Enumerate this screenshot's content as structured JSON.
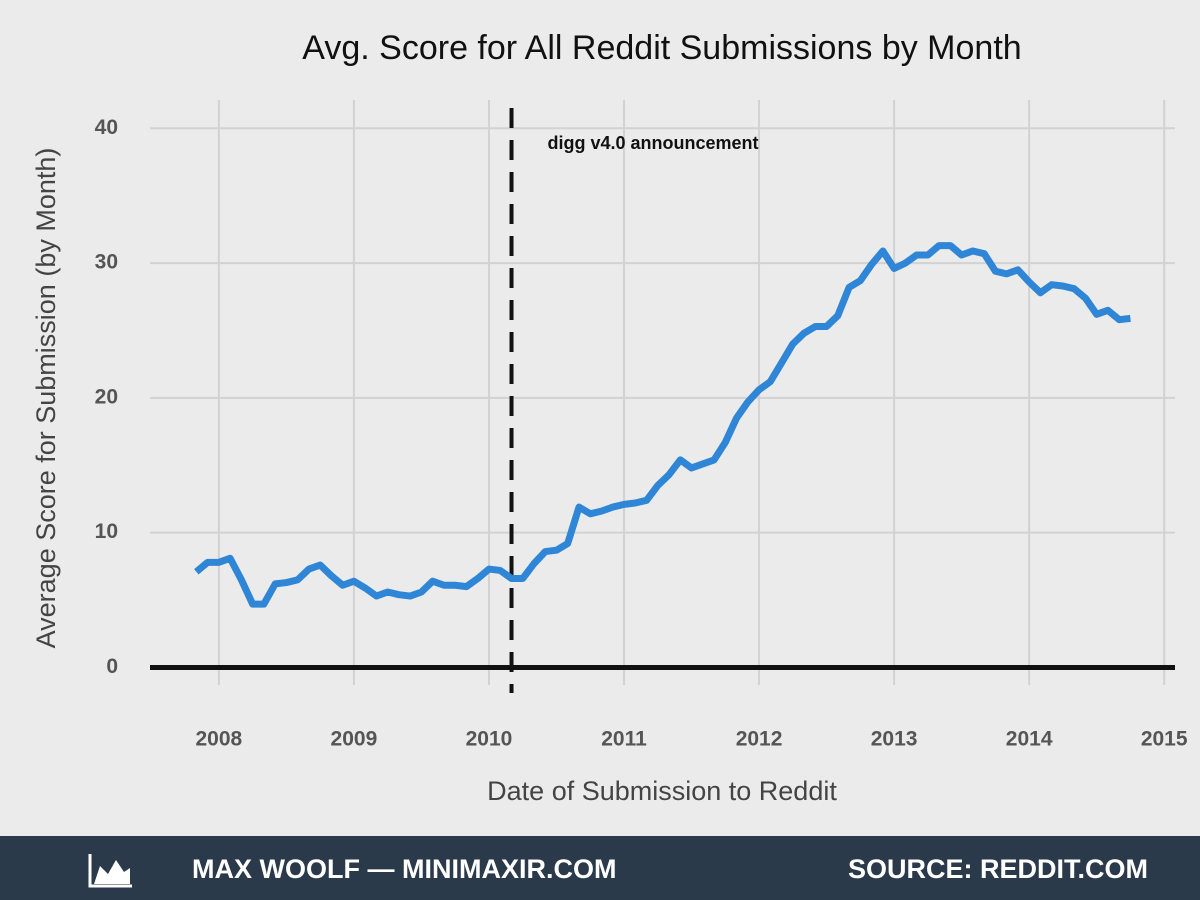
{
  "chart_data": {
    "type": "line",
    "title": "Avg. Score for All Reddit Submissions by Month",
    "x_label": "Date of Submission to Reddit",
    "y_label": "Average Score for Submission (by Month)",
    "annotation": "digg v4.0 announcement",
    "vline": 2010.167,
    "color": "#2f86d6",
    "grid": true,
    "xlim": [
      2007.49,
      2015.08
    ],
    "xticks": [
      2008,
      2009,
      2010,
      2011,
      2012,
      2013,
      2014,
      2015
    ],
    "ylim": [
      -1.3,
      42.1
    ],
    "yticks": [
      0,
      10,
      20,
      30,
      40
    ],
    "x": [
      2007.833,
      2007.917,
      2008.0,
      2008.083,
      2008.167,
      2008.25,
      2008.333,
      2008.417,
      2008.5,
      2008.583,
      2008.667,
      2008.75,
      2008.833,
      2008.917,
      2009.0,
      2009.083,
      2009.167,
      2009.25,
      2009.333,
      2009.417,
      2009.5,
      2009.583,
      2009.667,
      2009.75,
      2009.833,
      2009.917,
      2010.0,
      2010.083,
      2010.167,
      2010.25,
      2010.333,
      2010.417,
      2010.5,
      2010.583,
      2010.667,
      2010.75,
      2010.833,
      2010.917,
      2011.0,
      2011.083,
      2011.167,
      2011.25,
      2011.333,
      2011.417,
      2011.5,
      2011.583,
      2011.667,
      2011.75,
      2011.833,
      2011.917,
      2012.0,
      2012.083,
      2012.167,
      2012.25,
      2012.333,
      2012.417,
      2012.5,
      2012.583,
      2012.667,
      2012.75,
      2012.833,
      2012.917,
      2013.0,
      2013.083,
      2013.167,
      2013.25,
      2013.333,
      2013.417,
      2013.5,
      2013.583,
      2013.667,
      2013.75,
      2013.833,
      2013.917,
      2014.0,
      2014.083,
      2014.167,
      2014.25,
      2014.333,
      2014.417,
      2014.5,
      2014.583,
      2014.667,
      2014.75
    ],
    "values": [
      7.1,
      7.8,
      7.8,
      8.1,
      6.5,
      4.7,
      4.7,
      6.2,
      6.3,
      6.5,
      7.3,
      7.6,
      6.8,
      6.1,
      6.4,
      5.9,
      5.3,
      5.6,
      5.4,
      5.3,
      5.6,
      6.4,
      6.1,
      6.1,
      6.0,
      6.6,
      7.3,
      7.2,
      6.6,
      6.6,
      7.7,
      8.6,
      8.7,
      9.2,
      11.9,
      11.4,
      11.6,
      11.9,
      12.1,
      12.2,
      12.4,
      13.5,
      14.3,
      15.4,
      14.8,
      15.1,
      15.4,
      16.7,
      18.5,
      19.7,
      20.6,
      21.2,
      22.6,
      24.0,
      24.8,
      25.3,
      25.3,
      26.1,
      28.2,
      28.7,
      29.9,
      30.9,
      29.6,
      30.0,
      30.6,
      30.6,
      31.3,
      31.3,
      30.6,
      30.9,
      30.7,
      29.4,
      29.2,
      29.5,
      28.6,
      27.8,
      28.4,
      28.3,
      28.1,
      27.4,
      26.2,
      26.5,
      25.8,
      25.9
    ]
  },
  "footer": {
    "left": "MAX WOOLF — MINIMAXIR.COM",
    "right": "SOURCE: REDDIT.COM"
  }
}
